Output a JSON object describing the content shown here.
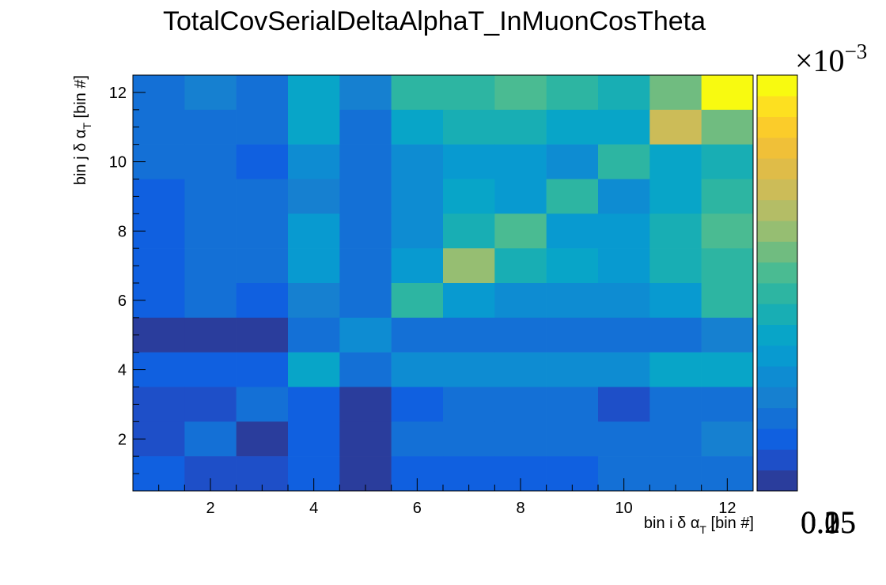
{
  "chart_data": {
    "type": "heatmap",
    "title": "TotalCovSerialDeltaAlphaT_InMuonCosTheta",
    "xlabel": {
      "text": "bin i δ α",
      "sub": "T",
      "rest": " [bin #]"
    },
    "ylabel": {
      "text": "bin j δ α",
      "sub": "T",
      "rest": " [bin #]"
    },
    "xlim": [
      0.5,
      12.5
    ],
    "ylim": [
      0.5,
      12.5
    ],
    "x_ticks": [
      "2",
      "4",
      "6",
      "8",
      "10",
      "12"
    ],
    "y_ticks": [
      "2",
      "4",
      "6",
      "8",
      "10",
      "12"
    ],
    "zlim": [
      0.015,
      0.215
    ],
    "z_multiplier": "×10",
    "z_exponent": "−3",
    "z_ticks": [
      "0.05",
      "0.1",
      "0.15",
      "0.2"
    ],
    "rows_top_to_bottom": [
      [
        0.052,
        0.06,
        0.054,
        0.09,
        0.058,
        0.11,
        0.11,
        0.125,
        0.11,
        0.1,
        0.13,
        0.215
      ],
      [
        0.048,
        0.048,
        0.048,
        0.085,
        0.055,
        0.085,
        0.1,
        0.1,
        0.09,
        0.09,
        0.16,
        0.13
      ],
      [
        0.048,
        0.048,
        0.035,
        0.065,
        0.045,
        0.07,
        0.08,
        0.08,
        0.07,
        0.105,
        0.09,
        0.1
      ],
      [
        0.038,
        0.045,
        0.045,
        0.06,
        0.045,
        0.07,
        0.09,
        0.08,
        0.11,
        0.065,
        0.09,
        0.11
      ],
      [
        0.04,
        0.045,
        0.045,
        0.075,
        0.045,
        0.07,
        0.1,
        0.125,
        0.08,
        0.08,
        0.1,
        0.125
      ],
      [
        0.038,
        0.045,
        0.045,
        0.075,
        0.05,
        0.08,
        0.14,
        0.1,
        0.09,
        0.08,
        0.1,
        0.11
      ],
      [
        0.038,
        0.045,
        0.035,
        0.06,
        0.05,
        0.11,
        0.08,
        0.07,
        0.07,
        0.07,
        0.08,
        0.11
      ],
      [
        0.022,
        0.022,
        0.022,
        0.045,
        0.065,
        0.055,
        0.055,
        0.045,
        0.045,
        0.045,
        0.05,
        0.06
      ],
      [
        0.038,
        0.038,
        0.038,
        0.085,
        0.045,
        0.065,
        0.07,
        0.07,
        0.065,
        0.065,
        0.085,
        0.09
      ],
      [
        0.025,
        0.025,
        0.048,
        0.038,
        0.022,
        0.038,
        0.045,
        0.045,
        0.045,
        0.033,
        0.045,
        0.055
      ],
      [
        0.025,
        0.048,
        0.022,
        0.038,
        0.022,
        0.045,
        0.045,
        0.045,
        0.045,
        0.045,
        0.045,
        0.06
      ],
      [
        0.038,
        0.025,
        0.025,
        0.038,
        0.022,
        0.038,
        0.038,
        0.038,
        0.038,
        0.045,
        0.045,
        0.055
      ]
    ],
    "palette": [
      "#2a3d9c",
      "#1e4fc8",
      "#1060e0",
      "#1470d6",
      "#1680d0",
      "#0e8cd2",
      "#089ad0",
      "#08a5c8",
      "#18aeb4",
      "#2db5a2",
      "#4abb92",
      "#70bc80",
      "#96be72",
      "#b4bd66",
      "#ccbc58",
      "#dfbc48",
      "#f0c038",
      "#fbcc2a",
      "#fde020",
      "#f8fa10"
    ]
  }
}
